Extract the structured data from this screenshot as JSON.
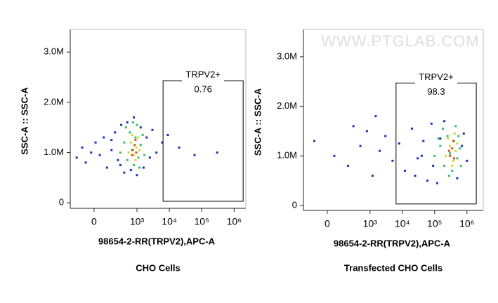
{
  "chart_data": [
    {
      "type": "scatter",
      "caption": "CHO Cells",
      "xlabel": "98654-2-RR(TRPV2),APC-A",
      "ylabel": "SSC-A :: SSC-A",
      "xscale": "biex",
      "xlim": [
        -250,
        2300000
      ],
      "ylim": [
        -110000,
        3450000
      ],
      "xticks": [
        0,
        {
          "value": 1000,
          "label": "10³"
        },
        {
          "value": 10000,
          "label": "10⁴"
        },
        {
          "value": 100000,
          "label": "10⁵"
        },
        {
          "value": 1000000,
          "label": "10⁶"
        }
      ],
      "yticks": [
        0,
        {
          "value": 1000000,
          "label": "1.0M"
        },
        {
          "value": 2000000,
          "label": "2.0M"
        },
        {
          "value": 3000000,
          "label": "3.0M"
        }
      ],
      "gate": {
        "name": "TRPV2+",
        "value": 0.76,
        "xlim": [
          6400,
          1900000
        ],
        "ylim": [
          30000,
          2430000
        ]
      },
      "series": [
        {
          "color": "#1b2fb8",
          "x": [
            -150,
            -90,
            -60,
            -20,
            10,
            40,
            70,
            100,
            150,
            200,
            250,
            320,
            400,
            500,
            650,
            800,
            1000,
            1300,
            1600,
            2000,
            2500,
            3000,
            4000,
            6000,
            9000,
            20000,
            60000,
            300000,
            150,
            300
          ],
          "y": [
            900000,
            1100000,
            800000,
            1000000,
            1200000,
            950000,
            1300000,
            700000,
            1050000,
            1400000,
            850000,
            1550000,
            600000,
            1600000,
            650000,
            1700000,
            550000,
            1500000,
            700000,
            1300000,
            900000,
            1450000,
            1000000,
            1200000,
            1350000,
            1100000,
            950000,
            1000000,
            1250000,
            750000
          ]
        },
        {
          "color": "#2fbf6a",
          "x": [
            300,
            400,
            500,
            600,
            700,
            800,
            900,
            1000,
            1100,
            1300,
            1500,
            1700,
            450,
            1200,
            750
          ],
          "y": [
            1000000,
            1200000,
            850000,
            1400000,
            1050000,
            750000,
            1300000,
            1550000,
            900000,
            1150000,
            1350000,
            950000,
            1500000,
            700000,
            1600000
          ]
        },
        {
          "color": "#d8d82a",
          "x": [
            550,
            650,
            800,
            950,
            1100,
            700,
            900,
            1200
          ],
          "y": [
            1000000,
            1200000,
            950000,
            1100000,
            1300000,
            1350000,
            850000,
            1050000
          ]
        },
        {
          "color": "#e0501e",
          "x": [
            750,
            850,
            950,
            700,
            900
          ],
          "y": [
            1050000,
            1150000,
            1000000,
            950000,
            1250000
          ]
        }
      ]
    },
    {
      "type": "scatter",
      "caption": "Transfected CHO Cells",
      "xlabel": "98654-2-RR(TRPV2),APC-A",
      "ylabel": "SSC-A :: SSC-A",
      "watermark": "WWW.PTGLAB.COM",
      "xscale": "biex",
      "xlim": [
        -250,
        3200000
      ],
      "ylim": [
        -100000,
        3550000
      ],
      "xticks": [
        0,
        {
          "value": 1000,
          "label": "10³"
        },
        {
          "value": 10000,
          "label": "10⁴"
        },
        {
          "value": 100000,
          "label": "10⁵"
        },
        {
          "value": 1000000,
          "label": "10⁶"
        }
      ],
      "yticks": [
        0,
        {
          "value": 1000000,
          "label": "1.0M"
        },
        {
          "value": 2000000,
          "label": "2.0M"
        },
        {
          "value": 3000000,
          "label": "3.0M"
        }
      ],
      "gate": {
        "name": "TRPV2+",
        "value": 98.3,
        "xlim": [
          6400,
          1950000
        ],
        "ylim": [
          30000,
          2470000
        ]
      },
      "series": [
        {
          "color": "#1b2fb8",
          "x": [
            -100,
            50,
            200,
            500,
            800,
            1200,
            2000,
            3000,
            5000,
            8000,
            12000,
            20000,
            30000,
            45000,
            60000,
            80000,
            120000,
            200000,
            500000,
            800000,
            1000000,
            700000,
            150000,
            40000,
            90000,
            1500,
            300,
            25000
          ],
          "y": [
            1300000,
            1000000,
            800000,
            1200000,
            1500000,
            600000,
            1100000,
            1400000,
            900000,
            1250000,
            700000,
            1550000,
            950000,
            1300000,
            500000,
            1650000,
            450000,
            1700000,
            550000,
            1450000,
            900000,
            1200000,
            1350000,
            1000000,
            800000,
            1800000,
            1600000,
            600000
          ]
        },
        {
          "color": "#2fbf6a",
          "x": [
            100000,
            150000,
            200000,
            250000,
            300000,
            350000,
            400000,
            500000,
            600000,
            180000,
            450000,
            280000,
            650000,
            130000,
            550000
          ],
          "y": [
            1000000,
            1200000,
            800000,
            1400000,
            1050000,
            700000,
            1300000,
            950000,
            1150000,
            1550000,
            1600000,
            600000,
            800000,
            1350000,
            1400000
          ]
        },
        {
          "color": "#d8d82a",
          "x": [
            220000,
            300000,
            380000,
            450000,
            260000,
            350000,
            500000,
            420000
          ],
          "y": [
            1000000,
            1200000,
            900000,
            1100000,
            1350000,
            800000,
            1250000,
            1450000
          ]
        },
        {
          "color": "#e0501e",
          "x": [
            300000,
            350000,
            400000,
            280000,
            380000
          ],
          "y": [
            1000000,
            1150000,
            950000,
            1100000,
            1300000
          ]
        }
      ]
    }
  ]
}
